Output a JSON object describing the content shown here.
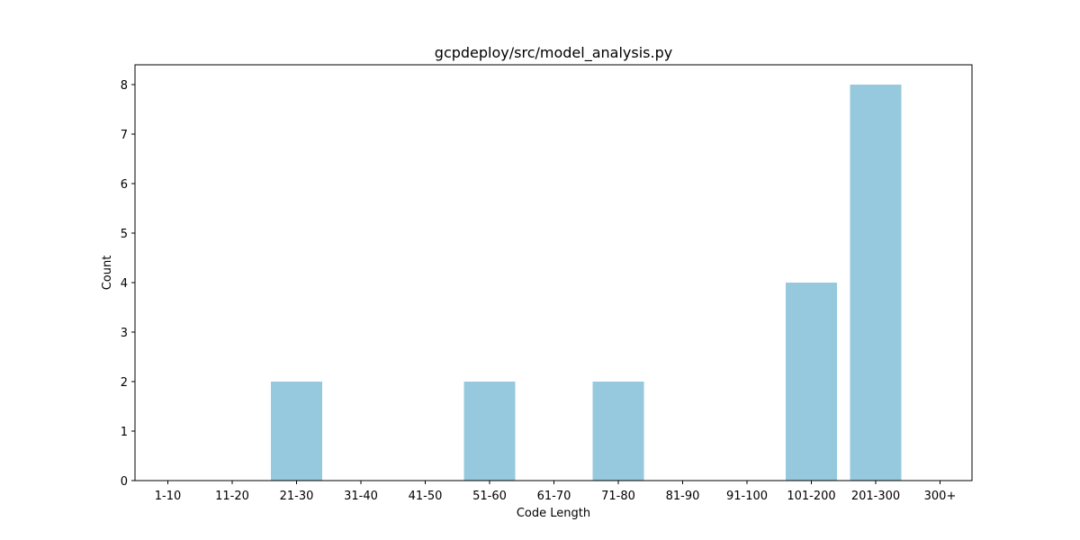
{
  "chart_data": {
    "type": "bar",
    "title": "gcpdeploy/src/model_analysis.py",
    "xlabel": "Code Length",
    "ylabel": "Count",
    "categories": [
      "1-10",
      "11-20",
      "21-30",
      "31-40",
      "41-50",
      "51-60",
      "61-70",
      "71-80",
      "81-90",
      "91-100",
      "101-200",
      "201-300",
      "300+"
    ],
    "values": [
      0,
      0,
      2,
      0,
      0,
      2,
      0,
      2,
      0,
      0,
      4,
      8,
      0
    ],
    "ylim": [
      0,
      8.4
    ],
    "yticks": [
      0,
      1,
      2,
      3,
      4,
      5,
      6,
      7,
      8
    ],
    "bar_color": "#96c9dd",
    "grid": false,
    "legend": false
  }
}
